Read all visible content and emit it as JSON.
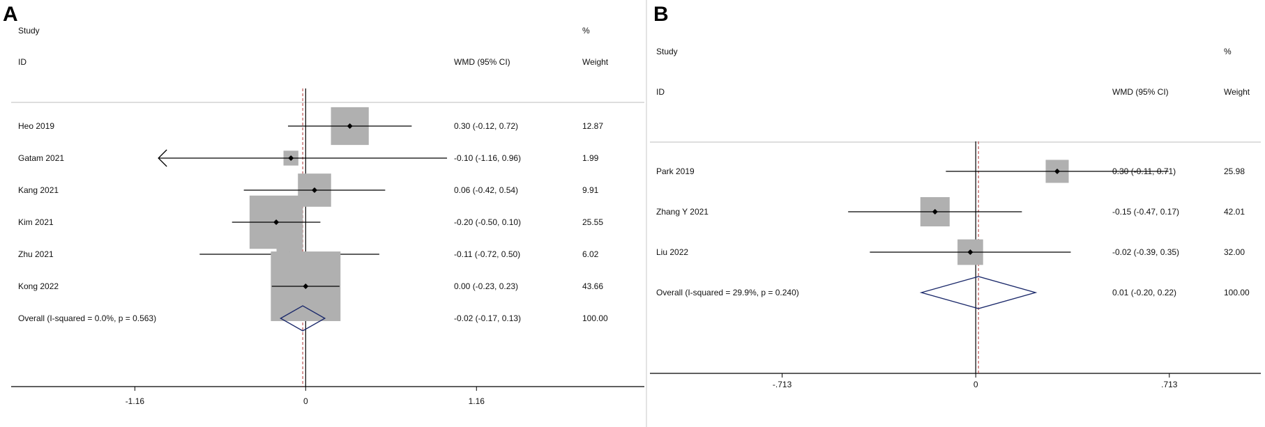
{
  "chart_data": [
    {
      "type": "forest",
      "panel": "A",
      "headers": {
        "study": "Study",
        "id": "ID",
        "effect": "WMD (95% CI)",
        "pct": "%",
        "weight": "Weight"
      },
      "xlim": [
        -2.0,
        2.3
      ],
      "xticks": [
        "-1.16",
        "0",
        "1.16"
      ],
      "xtick_values": [
        -1.16,
        0,
        1.16
      ],
      "overall_line": -0.02,
      "studies": [
        {
          "label": "Heo 2019",
          "est": 0.3,
          "lo": -0.12,
          "hi": 0.72,
          "ci_text": "0.30 (-0.12, 0.72)",
          "weight": 12.87,
          "weight_text": "12.87"
        },
        {
          "label": "Gatam 2021",
          "est": -0.1,
          "lo": -1.16,
          "hi": 0.96,
          "ci_text": "-0.10 (-1.16, 0.96)",
          "weight": 1.99,
          "weight_text": "1.99",
          "arrow_left": true
        },
        {
          "label": "Kang 2021",
          "est": 0.06,
          "lo": -0.42,
          "hi": 0.54,
          "ci_text": "0.06 (-0.42, 0.54)",
          "weight": 9.91,
          "weight_text": "9.91"
        },
        {
          "label": "Kim 2021",
          "est": -0.2,
          "lo": -0.5,
          "hi": 0.1,
          "ci_text": "-0.20 (-0.50, 0.10)",
          "weight": 25.55,
          "weight_text": "25.55"
        },
        {
          "label": "Zhu 2021",
          "est": -0.11,
          "lo": -0.72,
          "hi": 0.5,
          "ci_text": "-0.11 (-0.72, 0.50)",
          "weight": 6.02,
          "weight_text": "6.02"
        },
        {
          "label": "Kong 2022",
          "est": 0.0,
          "lo": -0.23,
          "hi": 0.23,
          "ci_text": "0.00 (-0.23, 0.23)",
          "weight": 43.66,
          "weight_text": "43.66"
        }
      ],
      "overall": {
        "label": "Overall  (I-squared = 0.0%, p = 0.563)",
        "est": -0.02,
        "lo": -0.17,
        "hi": 0.13,
        "ci_text": "-0.02 (-0.17, 0.13)",
        "weight_text": "100.00"
      },
      "colors": {
        "box": "#b0b0b0",
        "diamond": "#1c2a6b",
        "ref": "#000000",
        "overall_line": "#b03030"
      }
    },
    {
      "type": "forest",
      "panel": "B",
      "headers": {
        "study": "Study",
        "id": "ID",
        "effect": "WMD (95% CI)",
        "pct": "%",
        "weight": "Weight"
      },
      "xlim": [
        -1.2,
        1.05
      ],
      "xticks": [
        "-.713",
        "0",
        ".713"
      ],
      "xtick_values": [
        -0.713,
        0,
        0.713
      ],
      "overall_line": 0.01,
      "studies": [
        {
          "label": "Park 2019",
          "est": 0.3,
          "lo": -0.11,
          "hi": 0.71,
          "ci_text": "0.30 (-0.11, 0.71)",
          "weight": 25.98,
          "weight_text": "25.98"
        },
        {
          "label": "Zhang Y 2021",
          "est": -0.15,
          "lo": -0.47,
          "hi": 0.17,
          "ci_text": "-0.15 (-0.47, 0.17)",
          "weight": 42.01,
          "weight_text": "42.01"
        },
        {
          "label": "Liu 2022",
          "est": -0.02,
          "lo": -0.39,
          "hi": 0.35,
          "ci_text": "-0.02 (-0.39, 0.35)",
          "weight": 32.0,
          "weight_text": "32.00"
        }
      ],
      "overall": {
        "label": "Overall  (I-squared = 29.9%, p = 0.240)",
        "est": 0.01,
        "lo": -0.2,
        "hi": 0.22,
        "ci_text": "0.01 (-0.20, 0.22)",
        "weight_text": "100.00"
      },
      "colors": {
        "box": "#b0b0b0",
        "diamond": "#1c2a6b",
        "ref": "#000000",
        "overall_line": "#b03030"
      }
    }
  ]
}
